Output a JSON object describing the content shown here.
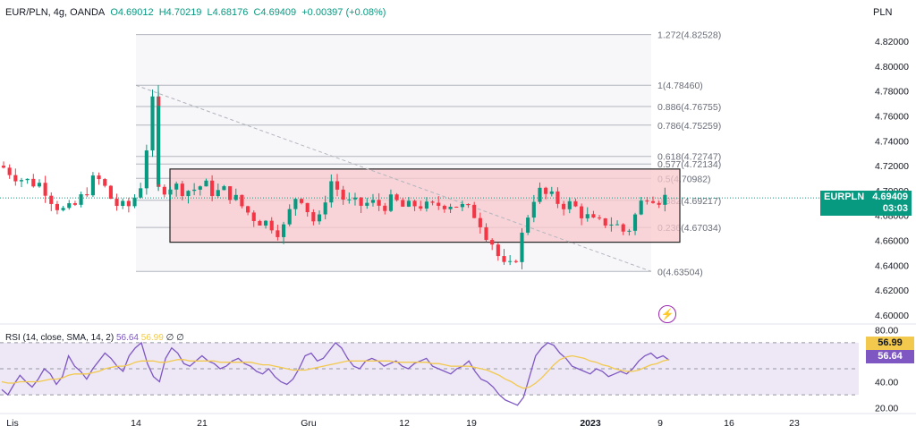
{
  "header": {
    "symbol": "EUR/PLN, 4g, OANDA",
    "open": "O4.69012",
    "high": "H4.70219",
    "low": "L4.68176",
    "close": "C4.69409",
    "change": "+0.00397 (+0.08%)"
  },
  "currency_label": "PLN",
  "price_tag": {
    "symbol": "EURPLN",
    "price": "4.69409",
    "timer": "03:03"
  },
  "rsi_header": {
    "label": "RSI (14, close, SMA, 14, 2)",
    "rsi_value": "56.64",
    "sma_value": "56.99",
    "extra": "∅ ∅"
  },
  "rsi_tags": {
    "sma": "56.99",
    "rsi": "56.64"
  },
  "colors": {
    "up": "#089981",
    "down": "#f23645",
    "rsi_line": "#7e57c2",
    "rsi_sma": "#f2c94c",
    "box_fill": "#f8c8cc",
    "box_stroke": "#222222",
    "fib_line": "#b2b5be",
    "rsi_band": "#ede7f6",
    "tag_green": "#089981",
    "tag_purple": "#7e57c2",
    "tag_yellow": "#f2c94c"
  },
  "chart_data": [
    {
      "type": "candlestick",
      "y_ticks": [
        "4.82000",
        "4.80000",
        "4.78000",
        "4.76000",
        "4.74000",
        "4.72000",
        "4.70000",
        "4.68000",
        "4.66000",
        "4.64000",
        "4.62000",
        "4.60000"
      ],
      "x_ticks": [
        "Lis",
        "14",
        "21",
        "Gru",
        "12",
        "19",
        "2023",
        "9",
        "16",
        "23"
      ],
      "ylim": [
        4.596,
        4.834
      ],
      "fib_levels": [
        {
          "ratio": "1.272",
          "value": 4.82528
        },
        {
          "ratio": "1",
          "value": 4.7846
        },
        {
          "ratio": "0.886",
          "value": 4.76755
        },
        {
          "ratio": "0.786",
          "value": 4.75259
        },
        {
          "ratio": "0.618",
          "value": 4.72747
        },
        {
          "ratio": "0.577",
          "value": 4.72134
        },
        {
          "ratio": "0.5",
          "value": 4.70982
        },
        {
          "ratio": "0.382",
          "value": 4.69217
        },
        {
          "ratio": "0.236",
          "value": 4.67034
        },
        {
          "ratio": "0",
          "value": 4.63504
        }
      ],
      "rectangle": {
        "from": "17",
        "to": "9",
        "top": 4.7173,
        "bottom": 4.6585
      },
      "trendline": {
        "from": {
          "x": "14",
          "y": 4.7846
        },
        "to": {
          "x": "9",
          "y": 4.63504
        }
      },
      "last_price": 4.69409,
      "close_path": [
        {
          "x": 0,
          "y": 4.72
        },
        {
          "x": 4,
          "y": 4.708
        },
        {
          "x": 7,
          "y": 4.705
        },
        {
          "x": 9,
          "y": 4.69
        },
        {
          "x": 11,
          "y": 4.682
        },
        {
          "x": 13,
          "y": 4.69
        },
        {
          "x": 15,
          "y": 4.705
        },
        {
          "x": 16,
          "y": 4.71
        },
        {
          "x": 17,
          "y": 4.706
        },
        {
          "x": 19,
          "y": 4.69
        },
        {
          "x": 21,
          "y": 4.685
        },
        {
          "x": 22,
          "y": 4.69
        },
        {
          "x": 23,
          "y": 4.7
        },
        {
          "x": 24,
          "y": 4.71
        },
        {
          "x": 25,
          "y": 4.76
        },
        {
          "x": 25.5,
          "y": 4.77
        },
        {
          "x": 26,
          "y": 4.7
        },
        {
          "x": 27,
          "y": 4.7
        },
        {
          "x": 28,
          "y": 4.705
        },
        {
          "x": 30,
          "y": 4.702
        },
        {
          "x": 32,
          "y": 4.7
        },
        {
          "x": 34,
          "y": 4.705
        },
        {
          "x": 36,
          "y": 4.698
        },
        {
          "x": 38,
          "y": 4.7
        },
        {
          "x": 40,
          "y": 4.69
        },
        {
          "x": 42,
          "y": 4.68
        },
        {
          "x": 44,
          "y": 4.675
        },
        {
          "x": 46,
          "y": 4.672
        },
        {
          "x": 47,
          "y": 4.665
        },
        {
          "x": 48,
          "y": 4.675
        },
        {
          "x": 49,
          "y": 4.69
        },
        {
          "x": 50,
          "y": 4.7
        },
        {
          "x": 51,
          "y": 4.69
        },
        {
          "x": 52,
          "y": 4.68
        },
        {
          "x": 53,
          "y": 4.672
        },
        {
          "x": 54,
          "y": 4.68
        },
        {
          "x": 55,
          "y": 4.71
        },
        {
          "x": 56,
          "y": 4.705
        },
        {
          "x": 58,
          "y": 4.69
        },
        {
          "x": 60,
          "y": 4.688
        },
        {
          "x": 62,
          "y": 4.69
        },
        {
          "x": 64,
          "y": 4.688
        },
        {
          "x": 66,
          "y": 4.692
        },
        {
          "x": 68,
          "y": 4.685
        },
        {
          "x": 70,
          "y": 4.69
        },
        {
          "x": 72,
          "y": 4.685
        },
        {
          "x": 74,
          "y": 4.69
        },
        {
          "x": 76,
          "y": 4.69
        },
        {
          "x": 78,
          "y": 4.685
        },
        {
          "x": 80,
          "y": 4.68
        },
        {
          "x": 81,
          "y": 4.67
        },
        {
          "x": 82,
          "y": 4.662
        },
        {
          "x": 83,
          "y": 4.655
        },
        {
          "x": 84,
          "y": 4.64
        },
        {
          "x": 85,
          "y": 4.636
        },
        {
          "x": 86,
          "y": 4.64
        },
        {
          "x": 87,
          "y": 4.655
        },
        {
          "x": 88,
          "y": 4.672
        },
        {
          "x": 89,
          "y": 4.69
        },
        {
          "x": 90,
          "y": 4.7
        },
        {
          "x": 92,
          "y": 4.695
        },
        {
          "x": 94,
          "y": 4.69
        },
        {
          "x": 96,
          "y": 4.688
        },
        {
          "x": 98,
          "y": 4.68
        },
        {
          "x": 100,
          "y": 4.672
        },
        {
          "x": 102,
          "y": 4.676
        },
        {
          "x": 104,
          "y": 4.67
        },
        {
          "x": 105,
          "y": 4.665
        },
        {
          "x": 106,
          "y": 4.675
        },
        {
          "x": 107,
          "y": 4.685
        },
        {
          "x": 108,
          "y": 4.695
        },
        {
          "x": 109,
          "y": 4.7
        },
        {
          "x": 110,
          "y": 4.692
        },
        {
          "x": 111,
          "y": 4.695
        },
        {
          "x": 112,
          "y": 4.694
        }
      ]
    },
    {
      "type": "line",
      "panel": "RSI",
      "y_ticks": [
        "80.00",
        "40.00",
        "20.00"
      ],
      "ylim": [
        17,
        83
      ],
      "bands": [
        70,
        50,
        30
      ],
      "series": [
        {
          "name": "RSI",
          "last": 56.64,
          "values": [
            34,
            30,
            38,
            45,
            40,
            36,
            42,
            50,
            46,
            38,
            44,
            60,
            52,
            48,
            42,
            50,
            56,
            62,
            58,
            52,
            48,
            60,
            66,
            70,
            54,
            44,
            40,
            58,
            66,
            62,
            54,
            52,
            56,
            60,
            56,
            54,
            50,
            52,
            56,
            58,
            54,
            52,
            48,
            46,
            50,
            44,
            40,
            38,
            42,
            50,
            60,
            62,
            56,
            58,
            64,
            70,
            66,
            58,
            52,
            50,
            56,
            58,
            56,
            52,
            54,
            56,
            52,
            50,
            54,
            56,
            58,
            52,
            50,
            48,
            46,
            50,
            52,
            56,
            48,
            42,
            40,
            36,
            30,
            26,
            24,
            22,
            28,
            44,
            60,
            66,
            70,
            68,
            62,
            58,
            52,
            50,
            48,
            46,
            50,
            48,
            44,
            46,
            48,
            46,
            50,
            56,
            60,
            62,
            58,
            60,
            56.64
          ]
        },
        {
          "name": "SMA",
          "last": 56.99,
          "values": [
            40,
            39,
            39,
            40,
            40,
            40,
            40,
            41,
            42,
            42,
            43,
            45,
            46,
            46,
            46,
            47,
            48,
            50,
            51,
            52,
            52,
            53,
            55,
            56,
            56,
            56,
            55,
            55,
            56,
            57,
            57,
            56,
            56,
            56,
            56,
            56,
            55,
            55,
            55,
            55,
            55,
            55,
            54,
            53,
            53,
            52,
            51,
            50,
            49,
            49,
            49,
            50,
            51,
            52,
            53,
            54,
            55,
            56,
            56,
            56,
            56,
            56,
            56,
            56,
            56,
            55,
            55,
            55,
            55,
            55,
            55,
            54,
            54,
            53,
            52,
            52,
            52,
            52,
            51,
            50,
            49,
            47,
            45,
            42,
            40,
            37,
            35,
            36,
            39,
            43,
            48,
            53,
            57,
            59,
            60,
            59,
            58,
            56,
            55,
            53,
            52,
            50,
            49,
            48,
            48,
            49,
            51,
            53,
            54,
            56,
            56.99
          ]
        }
      ]
    }
  ]
}
